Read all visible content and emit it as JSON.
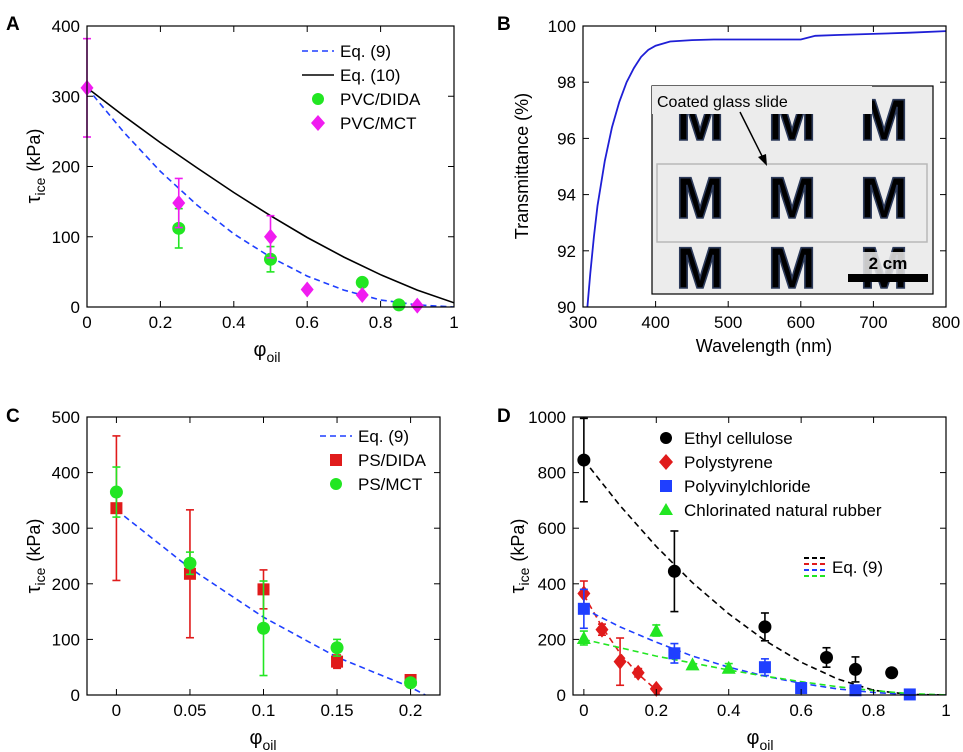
{
  "chart_data": [
    {
      "panel": "A",
      "type": "scatter",
      "xlabel": "φ",
      "xlabel_sub": "oil",
      "ylabel": "τ",
      "ylabel_sub": "ice",
      "ylabel_unit": "(kPa)",
      "xlim": [
        0,
        1
      ],
      "ylim": [
        0,
        400
      ],
      "xticks": [
        0,
        0.2,
        0.4,
        0.6,
        0.8,
        1
      ],
      "xtick_labels": [
        "0",
        "0.2",
        "0.4",
        "0.6",
        "0.8",
        "1"
      ],
      "yticks": [
        0,
        100,
        200,
        300,
        400
      ],
      "ytick_labels": [
        "0",
        "100",
        "200",
        "300",
        "400"
      ],
      "legend_position": "top-right",
      "curves": [
        {
          "name": "Eq. (9)",
          "color": "#1f3fff",
          "dash": true,
          "x": [
            0,
            0.1,
            0.2,
            0.3,
            0.4,
            0.5,
            0.6,
            0.7,
            0.8,
            0.9,
            1.0
          ],
          "y": [
            312,
            249,
            193,
            145,
            104,
            71,
            44,
            24,
            10,
            3,
            0
          ]
        },
        {
          "name": "Eq. (10)",
          "color": "#000000",
          "dash": false,
          "x": [
            0,
            0.1,
            0.2,
            0.3,
            0.4,
            0.5,
            0.6,
            0.7,
            0.8,
            0.9,
            1.0
          ],
          "y": [
            312,
            272,
            234,
            198,
            163,
            130,
            99,
            71,
            46,
            24,
            6
          ]
        }
      ],
      "series": [
        {
          "name": "PVC/DIDA",
          "marker": "circle",
          "color": "#22e622",
          "x": [
            0.25,
            0.5,
            0.75,
            0.85
          ],
          "y": [
            112,
            68,
            35,
            3
          ],
          "err": [
            28,
            18,
            0,
            0
          ]
        },
        {
          "name": "PVC/MCT",
          "marker": "diamond",
          "color": "#f01cf0",
          "x": [
            0,
            0.25,
            0.5,
            0.6,
            0.75,
            0.9
          ],
          "y": [
            312,
            148,
            100,
            25,
            17,
            2
          ],
          "err": [
            70,
            35,
            30,
            0,
            0,
            0
          ]
        }
      ]
    },
    {
      "panel": "B",
      "type": "line",
      "xlabel": "Wavelength (nm)",
      "ylabel": "Transmittance (%)",
      "xlim": [
        300,
        800
      ],
      "ylim": [
        90,
        100
      ],
      "xticks": [
        300,
        400,
        500,
        600,
        700,
        800
      ],
      "xtick_labels": [
        "300",
        "400",
        "500",
        "600",
        "700",
        "800"
      ],
      "yticks": [
        90,
        92,
        94,
        96,
        98,
        100
      ],
      "ytick_labels": [
        "90",
        "92",
        "94",
        "96",
        "98",
        "100"
      ],
      "series": [
        {
          "color": "#1f1fd6",
          "x": [
            306,
            310,
            315,
            320,
            330,
            340,
            350,
            360,
            370,
            380,
            390,
            400,
            420,
            450,
            480,
            500,
            550,
            600,
            620,
            650,
            700,
            750,
            800
          ],
          "y": [
            90.0,
            91.2,
            92.5,
            93.6,
            95.2,
            96.4,
            97.3,
            98.0,
            98.5,
            98.9,
            99.15,
            99.3,
            99.45,
            99.5,
            99.52,
            99.52,
            99.52,
            99.52,
            99.65,
            99.68,
            99.72,
            99.76,
            99.82
          ]
        }
      ],
      "inset": {
        "text": "Coated glass slide",
        "scale_label": "2 cm",
        "letter": "M"
      }
    },
    {
      "panel": "C",
      "type": "scatter",
      "xlabel": "φ",
      "xlabel_sub": "oil",
      "ylabel": "τ",
      "ylabel_sub": "ice",
      "ylabel_unit": "(kPa)",
      "xlim": [
        -0.02,
        0.22
      ],
      "ylim": [
        0,
        500
      ],
      "xticks": [
        0,
        0.05,
        0.1,
        0.15,
        0.2
      ],
      "xtick_labels": [
        "0",
        "0.05",
        "0.1",
        "0.15",
        "0.2"
      ],
      "yticks": [
        0,
        100,
        200,
        300,
        400,
        500
      ],
      "ytick_labels": [
        "0",
        "100",
        "200",
        "300",
        "400",
        "500"
      ],
      "legend_position": "top-right",
      "curves": [
        {
          "name": "Eq. (9)",
          "color": "#1f3fff",
          "dash": true,
          "x": [
            0,
            0.05,
            0.1,
            0.15,
            0.2,
            0.21
          ],
          "y": [
            333,
            228,
            140,
            68,
            14,
            0
          ]
        }
      ],
      "series": [
        {
          "name": "PS/DIDA",
          "marker": "square",
          "color": "#e01b1b",
          "x": [
            0,
            0.05,
            0.1,
            0.15,
            0.2
          ],
          "y": [
            336,
            218,
            190,
            60,
            27
          ],
          "err": [
            130,
            115,
            35,
            12,
            8
          ]
        },
        {
          "name": "PS/MCT",
          "marker": "circle",
          "color": "#22e622",
          "x": [
            0,
            0.05,
            0.1,
            0.15,
            0.2
          ],
          "y": [
            365,
            237,
            120,
            85,
            22
          ],
          "err": [
            45,
            20,
            85,
            15,
            5
          ]
        }
      ]
    },
    {
      "panel": "D",
      "type": "scatter",
      "xlabel": "φ",
      "xlabel_sub": "oil",
      "ylabel": "τ",
      "ylabel_sub": "ice",
      "ylabel_unit": "(kPa)",
      "xlim": [
        -0.03,
        1
      ],
      "ylim": [
        0,
        1000
      ],
      "xticks": [
        0,
        0.2,
        0.4,
        0.6,
        0.8,
        1
      ],
      "xtick_labels": [
        "0",
        "0.2",
        "0.4",
        "0.6",
        "0.8",
        "1"
      ],
      "yticks": [
        0,
        200,
        400,
        600,
        800,
        1000
      ],
      "ytick_labels": [
        "0",
        "200",
        "400",
        "600",
        "800",
        "1000"
      ],
      "legend_position": "top-right",
      "eq_label": "Eq. (9)",
      "curves": [
        {
          "color": "#000000",
          "dash": true,
          "x": [
            0,
            0.1,
            0.2,
            0.3,
            0.4,
            0.5,
            0.6,
            0.7,
            0.8,
            0.9,
            1.0
          ],
          "y": [
            845,
            681,
            534,
            404,
            292,
            196,
            118,
            58,
            17,
            2,
            0
          ]
        },
        {
          "color": "#e01b1b",
          "dash": true,
          "x": [
            0,
            0.05,
            0.1,
            0.15,
            0.2,
            0.21
          ],
          "y": [
            360,
            245,
            150,
            75,
            18,
            0
          ]
        },
        {
          "color": "#1f3fff",
          "dash": true,
          "x": [
            0,
            0.1,
            0.2,
            0.3,
            0.4,
            0.5,
            0.6,
            0.7,
            0.8,
            0.9,
            1.0
          ],
          "y": [
            310,
            245,
            190,
            140,
            100,
            68,
            42,
            22,
            9,
            2,
            0
          ]
        },
        {
          "color": "#22e622",
          "dash": true,
          "x": [
            0,
            0.1,
            0.2,
            0.3,
            0.4,
            0.5,
            0.6,
            0.7,
            0.8,
            0.9,
            1.0
          ],
          "y": [
            200,
            170,
            140,
            115,
            90,
            68,
            48,
            30,
            16,
            5,
            0
          ]
        }
      ],
      "series": [
        {
          "name": "Ethyl cellulose",
          "marker": "circle",
          "color": "#000000",
          "x": [
            0,
            0.25,
            0.5,
            0.67,
            0.75,
            0.85
          ],
          "y": [
            845,
            445,
            245,
            135,
            92,
            80
          ],
          "err": [
            150,
            145,
            50,
            35,
            45,
            0
          ]
        },
        {
          "name": "Polystyrene",
          "marker": "diamond",
          "color": "#e01b1b",
          "x": [
            0,
            0.05,
            0.1,
            0.15,
            0.2
          ],
          "y": [
            365,
            235,
            120,
            80,
            22
          ],
          "err": [
            45,
            20,
            85,
            15,
            0
          ]
        },
        {
          "name": "Polyvinylchloride",
          "marker": "square",
          "color": "#1f3fff",
          "x": [
            0,
            0.25,
            0.5,
            0.6,
            0.75,
            0.9
          ],
          "y": [
            310,
            150,
            100,
            25,
            17,
            2
          ],
          "err": [
            70,
            35,
            30,
            0,
            0,
            0
          ]
        },
        {
          "name": "Chlorinated natural rubber",
          "marker": "triangle",
          "color": "#22e622",
          "x": [
            0,
            0.2,
            0.3,
            0.4
          ],
          "y": [
            205,
            232,
            110,
            98
          ],
          "err": [
            25,
            20,
            0,
            15
          ]
        }
      ]
    }
  ]
}
